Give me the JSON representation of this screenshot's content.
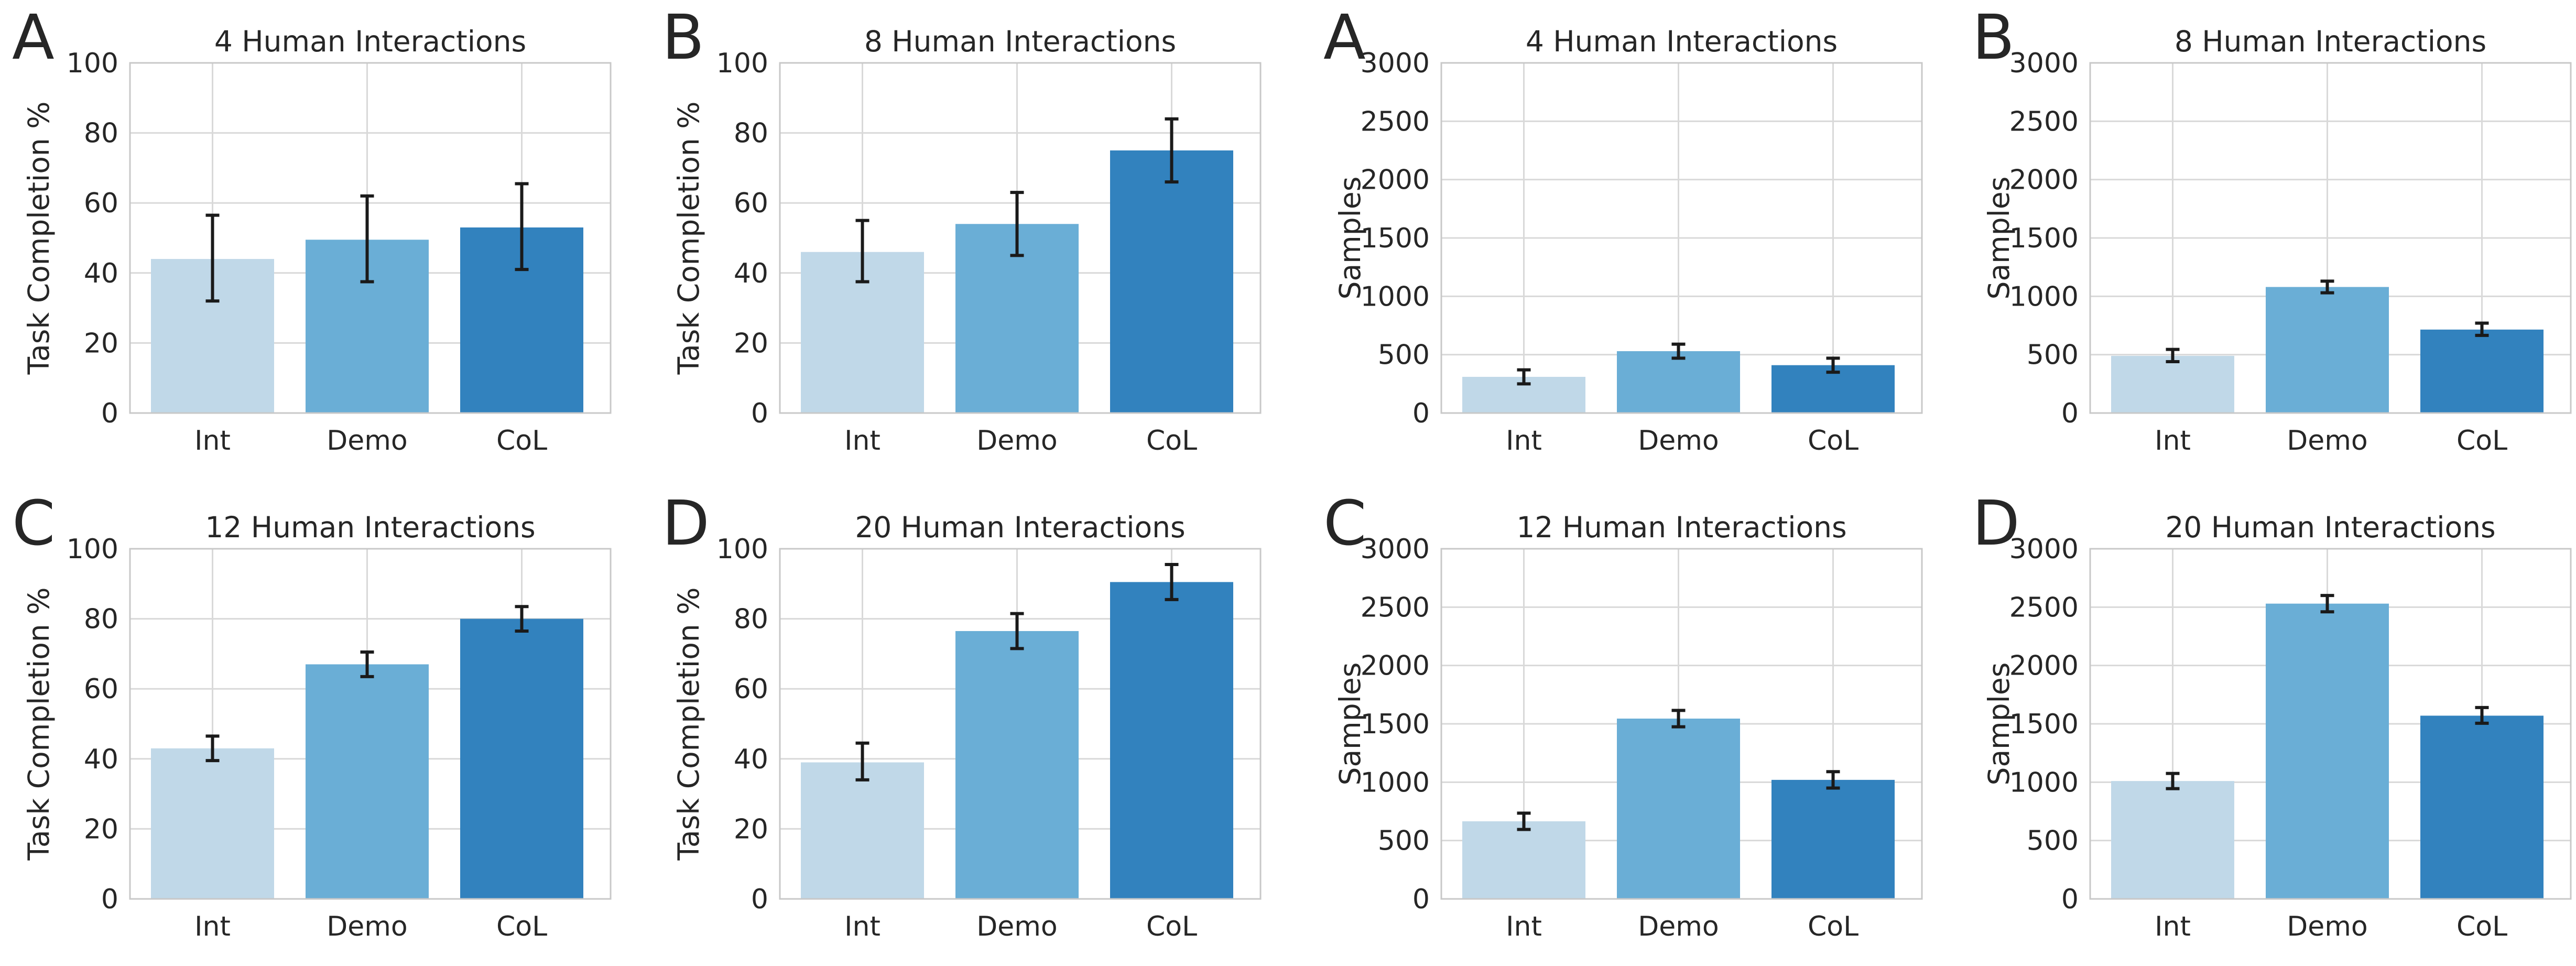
{
  "figure": {
    "colors": {
      "background": "#ffffff",
      "grid": "#d9d9d9",
      "spine": "#c8c8c8",
      "text": "#262626",
      "error_bar": "#1a1a1a"
    }
  },
  "chart_data": [
    {
      "panel_letter": "A",
      "type": "bar",
      "title": "4 Human Interactions",
      "xlabel": "",
      "ylabel": "Task Completion %",
      "categories": [
        "Int",
        "Demo",
        "CoL"
      ],
      "values": [
        44,
        49.5,
        53
      ],
      "error_low": [
        32,
        37.5,
        41
      ],
      "error_high": [
        56.5,
        62,
        65.5
      ],
      "colors": [
        "#c0d8e8",
        "#6aaed6",
        "#3282be"
      ],
      "ylim": [
        0,
        100
      ],
      "yticks": [
        0,
        20,
        40,
        60,
        80,
        100
      ],
      "ytick_labels": [
        "0",
        "20",
        "40",
        "60",
        "80",
        "100"
      ],
      "grid": true
    },
    {
      "panel_letter": "B",
      "type": "bar",
      "title": "8 Human Interactions",
      "xlabel": "",
      "ylabel": "Task Completion %",
      "categories": [
        "Int",
        "Demo",
        "CoL"
      ],
      "values": [
        46,
        54,
        75
      ],
      "error_low": [
        37.5,
        45,
        66
      ],
      "error_high": [
        55,
        63,
        84
      ],
      "colors": [
        "#c0d8e8",
        "#6aaed6",
        "#3282be"
      ],
      "ylim": [
        0,
        100
      ],
      "yticks": [
        0,
        20,
        40,
        60,
        80,
        100
      ],
      "ytick_labels": [
        "0",
        "20",
        "40",
        "60",
        "80",
        "100"
      ],
      "grid": true
    },
    {
      "panel_letter": "A",
      "type": "bar",
      "title": "4 Human Interactions",
      "xlabel": "",
      "ylabel": "Samples",
      "categories": [
        "Int",
        "Demo",
        "CoL"
      ],
      "values": [
        310,
        530,
        410
      ],
      "error_low": [
        250,
        470,
        350
      ],
      "error_high": [
        370,
        590,
        470
      ],
      "colors": [
        "#c0d8e8",
        "#6aaed6",
        "#3282be"
      ],
      "ylim": [
        0,
        3000
      ],
      "yticks": [
        0,
        500,
        1000,
        1500,
        2000,
        2500,
        3000
      ],
      "ytick_labels": [
        "0",
        "500",
        "1000",
        "1500",
        "2000",
        "2500",
        "3000"
      ],
      "grid": true
    },
    {
      "panel_letter": "B",
      "type": "bar",
      "title": "8 Human Interactions",
      "xlabel": "",
      "ylabel": "Samples",
      "categories": [
        "Int",
        "Demo",
        "CoL"
      ],
      "values": [
        490,
        1080,
        715
      ],
      "error_low": [
        440,
        1030,
        665
      ],
      "error_high": [
        545,
        1130,
        770
      ],
      "colors": [
        "#c0d8e8",
        "#6aaed6",
        "#3282be"
      ],
      "ylim": [
        0,
        3000
      ],
      "yticks": [
        0,
        500,
        1000,
        1500,
        2000,
        2500,
        3000
      ],
      "ytick_labels": [
        "0",
        "500",
        "1000",
        "1500",
        "2000",
        "2500",
        "3000"
      ],
      "grid": true
    },
    {
      "panel_letter": "C",
      "type": "bar",
      "title": "12 Human Interactions",
      "xlabel": "",
      "ylabel": "Task Completion %",
      "categories": [
        "Int",
        "Demo",
        "CoL"
      ],
      "values": [
        43,
        67,
        80
      ],
      "error_low": [
        39.5,
        63.5,
        76.5
      ],
      "error_high": [
        46.5,
        70.5,
        83.5
      ],
      "colors": [
        "#c0d8e8",
        "#6aaed6",
        "#3282be"
      ],
      "ylim": [
        0,
        100
      ],
      "yticks": [
        0,
        20,
        40,
        60,
        80,
        100
      ],
      "ytick_labels": [
        "0",
        "20",
        "40",
        "60",
        "80",
        "100"
      ],
      "grid": true
    },
    {
      "panel_letter": "D",
      "type": "bar",
      "title": "20 Human Interactions",
      "xlabel": "",
      "ylabel": "Task Completion %",
      "categories": [
        "Int",
        "Demo",
        "CoL"
      ],
      "values": [
        39,
        76.5,
        90.5
      ],
      "error_low": [
        34,
        71.5,
        85.5
      ],
      "error_high": [
        44.5,
        81.5,
        95.5
      ],
      "colors": [
        "#c0d8e8",
        "#6aaed6",
        "#3282be"
      ],
      "ylim": [
        0,
        100
      ],
      "yticks": [
        0,
        20,
        40,
        60,
        80,
        100
      ],
      "ytick_labels": [
        "0",
        "20",
        "40",
        "60",
        "80",
        "100"
      ],
      "grid": true
    },
    {
      "panel_letter": "C",
      "type": "bar",
      "title": "12 Human Interactions",
      "xlabel": "",
      "ylabel": "Samples",
      "categories": [
        "Int",
        "Demo",
        "CoL"
      ],
      "values": [
        665,
        1545,
        1020
      ],
      "error_low": [
        595,
        1475,
        950
      ],
      "error_high": [
        735,
        1615,
        1090
      ],
      "colors": [
        "#c0d8e8",
        "#6aaed6",
        "#3282be"
      ],
      "ylim": [
        0,
        3000
      ],
      "yticks": [
        0,
        500,
        1000,
        1500,
        2000,
        2500,
        3000
      ],
      "ytick_labels": [
        "0",
        "500",
        "1000",
        "1500",
        "2000",
        "2500",
        "3000"
      ],
      "grid": true
    },
    {
      "panel_letter": "D",
      "type": "bar",
      "title": "20 Human Interactions",
      "xlabel": "",
      "ylabel": "Samples",
      "categories": [
        "Int",
        "Demo",
        "CoL"
      ],
      "values": [
        1010,
        2530,
        1570
      ],
      "error_low": [
        945,
        2460,
        1505
      ],
      "error_high": [
        1075,
        2600,
        1640
      ],
      "colors": [
        "#c0d8e8",
        "#6aaed6",
        "#3282be"
      ],
      "ylim": [
        0,
        3000
      ],
      "yticks": [
        0,
        500,
        1000,
        1500,
        2000,
        2500,
        3000
      ],
      "ytick_labels": [
        "0",
        "500",
        "1000",
        "1500",
        "2000",
        "2500",
        "3000"
      ],
      "grid": true
    }
  ]
}
